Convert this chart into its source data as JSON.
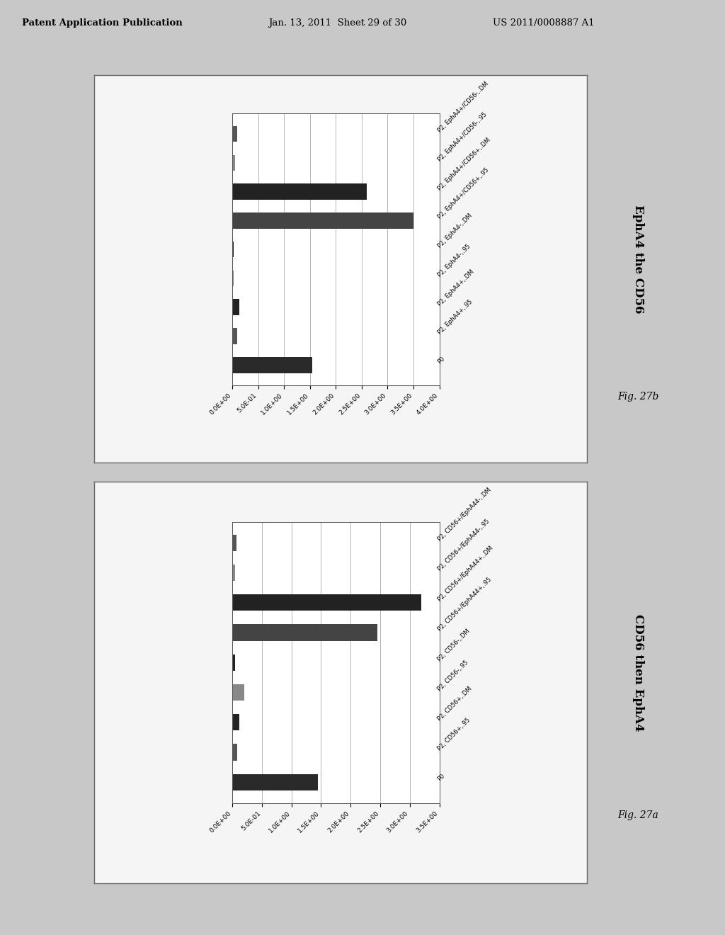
{
  "fig_width": 10.24,
  "fig_height": 13.2,
  "background_color": "#c8c8c8",
  "panel_bg": "#ffffff",
  "header": {
    "left_text": "Patent Application Publication",
    "center_text": "Jan. 13, 2011  Sheet 29 of 30",
    "right_text": "US 2011/0008887 A1"
  },
  "chart_b": {
    "title": "EphA4 the CD56",
    "fig_label": "Fig. 27b",
    "categories": [
      "P0",
      "P2, EphA4+,.95",
      "P2, EphA4+,.DM",
      "P2, EphA4-,.95",
      "P2, EphA4-,.DM",
      "P2, EphA4+/CD56+,.95",
      "P2, EphA4+/CD56+,.DM",
      "P2, EphA4+/CD56-,.95",
      "P2, EphA4+/CD56-,.DM"
    ],
    "values": [
      1.55,
      0.1,
      0.14,
      0.02,
      0.02,
      3.5,
      2.6,
      0.06,
      0.09
    ],
    "bar_colors": [
      "#2a2a2a",
      "#555555",
      "#222222",
      "#888888",
      "#222222",
      "#444444",
      "#222222",
      "#888888",
      "#555555"
    ],
    "xlim": [
      0,
      4.0
    ],
    "xticks": [
      0.0,
      0.5,
      1.0,
      1.5,
      2.0,
      2.5,
      3.0,
      3.5,
      4.0
    ],
    "xtick_labels": [
      "0.0E+00",
      "5.0E-01",
      "1.0E+00",
      "1.5E+00",
      "2.0E+00",
      "2.5E+00",
      "3.0E+00",
      "3.5E+00",
      "4.0E+00"
    ]
  },
  "chart_a": {
    "title": "CD56 then EphA4",
    "fig_label": "Fig. 27a",
    "categories": [
      "P0",
      "P2, CD56+,.95",
      "P2, CD56+,.DM",
      "P2, CD56-,.95",
      "P2, CD56-,.DM",
      "P2, CD56+/EphA44+,.95",
      "P2, CD56+/EphA44+,.DM",
      "P2, CD56+/EphA44-,.95",
      "P2, CD56+/EphA44-,.DM"
    ],
    "values": [
      1.45,
      0.08,
      0.12,
      0.2,
      0.05,
      2.45,
      3.2,
      0.05,
      0.07
    ],
    "bar_colors": [
      "#2a2a2a",
      "#555555",
      "#222222",
      "#888888",
      "#222222",
      "#444444",
      "#222222",
      "#888888",
      "#555555"
    ],
    "xlim": [
      0,
      3.5
    ],
    "xticks": [
      0.0,
      0.5,
      1.0,
      1.5,
      2.0,
      2.5,
      3.0,
      3.5
    ],
    "xtick_labels": [
      "0.0E+00",
      "5.0E-01",
      "1.0E+00",
      "1.5E+00",
      "2.0E+00",
      "2.5E+00",
      "3.0E+00",
      "3.5E+00"
    ]
  }
}
